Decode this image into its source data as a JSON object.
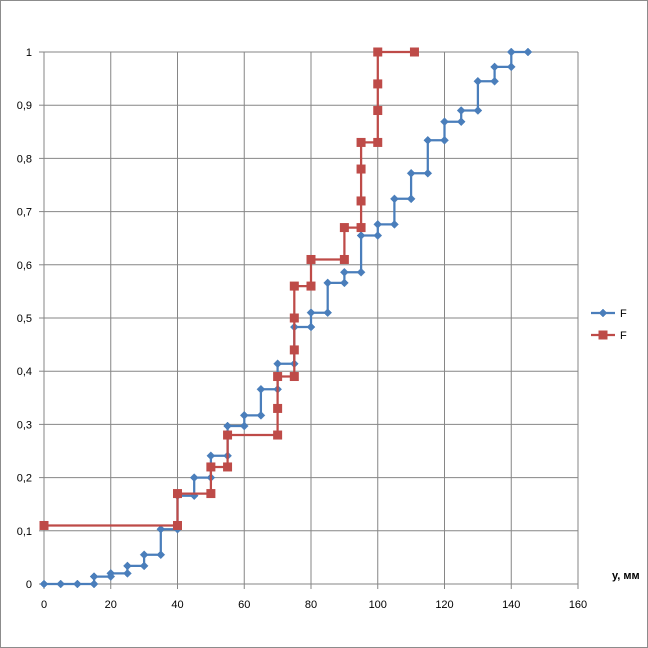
{
  "chart_data": {
    "type": "line",
    "xlabel": "y, мм",
    "ylabel": "",
    "xlim": [
      0,
      160
    ],
    "ylim": [
      0,
      1
    ],
    "x_ticks": [
      "0",
      "20",
      "40",
      "60",
      "80",
      "100",
      "120",
      "140",
      "160"
    ],
    "y_ticks": [
      "0",
      "0,1",
      "0,2",
      "0,3",
      "0,4",
      "0,5",
      "0,6",
      "0,7",
      "0,8",
      "0,9",
      "1"
    ],
    "grid": true,
    "legend_position": "right",
    "series": [
      {
        "name": "F",
        "color": "#4a7ebb",
        "marker": "diamond",
        "points": [
          [
            0,
            0
          ],
          [
            5,
            0
          ],
          [
            10,
            0
          ],
          [
            15,
            0
          ],
          [
            15,
            0.014
          ],
          [
            20,
            0.014
          ],
          [
            20,
            0.02
          ],
          [
            25,
            0.02
          ],
          [
            25,
            0.034
          ],
          [
            30,
            0.034
          ],
          [
            30,
            0.055
          ],
          [
            35,
            0.055
          ],
          [
            35,
            0.103
          ],
          [
            40,
            0.103
          ],
          [
            40,
            0.166
          ],
          [
            45,
            0.166
          ],
          [
            45,
            0.2
          ],
          [
            50,
            0.2
          ],
          [
            50,
            0.241
          ],
          [
            55,
            0.241
          ],
          [
            55,
            0.297
          ],
          [
            60,
            0.297
          ],
          [
            60,
            0.317
          ],
          [
            65,
            0.317
          ],
          [
            65,
            0.366
          ],
          [
            70,
            0.366
          ],
          [
            70,
            0.414
          ],
          [
            75,
            0.414
          ],
          [
            75,
            0.483
          ],
          [
            80,
            0.483
          ],
          [
            80,
            0.51
          ],
          [
            85,
            0.51
          ],
          [
            85,
            0.566
          ],
          [
            90,
            0.566
          ],
          [
            90,
            0.586
          ],
          [
            95,
            0.586
          ],
          [
            95,
            0.655
          ],
          [
            100,
            0.655
          ],
          [
            100,
            0.676
          ],
          [
            105,
            0.676
          ],
          [
            105,
            0.724
          ],
          [
            110,
            0.724
          ],
          [
            110,
            0.772
          ],
          [
            115,
            0.772
          ],
          [
            115,
            0.834
          ],
          [
            120,
            0.834
          ],
          [
            120,
            0.869
          ],
          [
            125,
            0.869
          ],
          [
            125,
            0.89
          ],
          [
            130,
            0.89
          ],
          [
            130,
            0.945
          ],
          [
            135,
            0.945
          ],
          [
            135,
            0.972
          ],
          [
            140,
            0.972
          ],
          [
            140,
            1
          ],
          [
            145,
            1
          ]
        ]
      },
      {
        "name": "F",
        "color": "#be4b48",
        "marker": "square",
        "points": [
          [
            0,
            0.11
          ],
          [
            40,
            0.11
          ],
          [
            40,
            0.17
          ],
          [
            50,
            0.17
          ],
          [
            50,
            0.22
          ],
          [
            55,
            0.22
          ],
          [
            55,
            0.28
          ],
          [
            70,
            0.28
          ],
          [
            70,
            0.33
          ],
          [
            70,
            0.39
          ],
          [
            75,
            0.39
          ],
          [
            75,
            0.44
          ],
          [
            75,
            0.5
          ],
          [
            75,
            0.56
          ],
          [
            80,
            0.56
          ],
          [
            80,
            0.61
          ],
          [
            90,
            0.61
          ],
          [
            90,
            0.67
          ],
          [
            95,
            0.67
          ],
          [
            95,
            0.72
          ],
          [
            95,
            0.78
          ],
          [
            95,
            0.83
          ],
          [
            100,
            0.83
          ],
          [
            100,
            0.89
          ],
          [
            100,
            0.94
          ],
          [
            100,
            1
          ],
          [
            111,
            1
          ]
        ]
      }
    ]
  }
}
